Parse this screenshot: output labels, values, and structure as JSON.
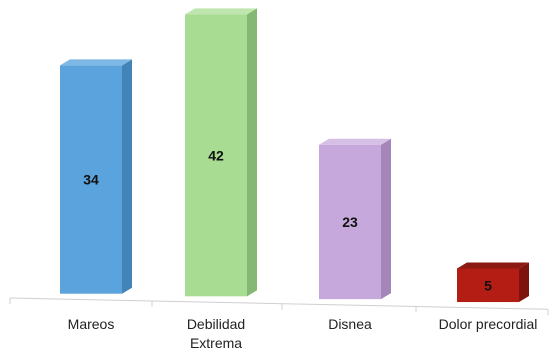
{
  "chart_data": {
    "type": "bar",
    "categories": [
      "Mareos",
      "Debilidad Extrema",
      "Disnea",
      "Dolor precordial"
    ],
    "category_lines": [
      [
        "Mareos"
      ],
      [
        "Debilidad",
        "Extrema"
      ],
      [
        "Disnea"
      ],
      [
        "Dolor precordial"
      ]
    ],
    "values": [
      34,
      42,
      23,
      5
    ],
    "data_labels": [
      "34",
      "42",
      "23",
      "5"
    ],
    "title": "",
    "xlabel": "",
    "ylabel": "",
    "ylim": [
      0,
      42
    ],
    "grid": false,
    "legend": "none",
    "bar_colors": [
      {
        "front": "#5ba3dc",
        "side": "#4384b8",
        "top": "#7db7e4"
      },
      {
        "front": "#a8dc92",
        "side": "#85b874",
        "top": "#c0e6af"
      },
      {
        "front": "#c6a8dc",
        "side": "#a487b8",
        "top": "#d7c0e6"
      },
      {
        "front": "#b31d14",
        "side": "#7e120c",
        "top": "#8a1a12"
      }
    ],
    "axis_color": "#d0d0d0"
  }
}
